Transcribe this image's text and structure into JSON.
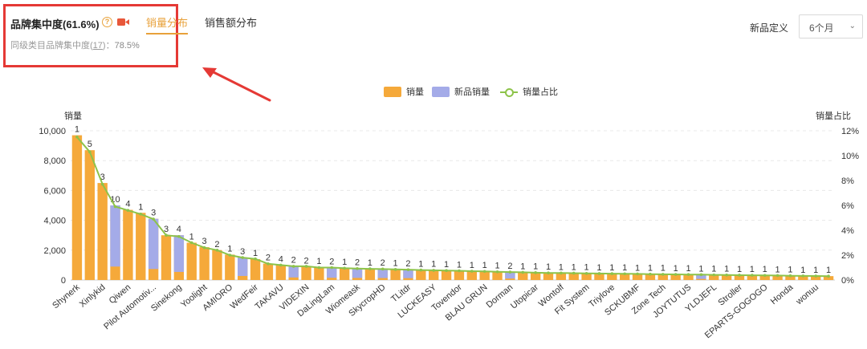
{
  "header": {
    "title": "品牌集中度(61.6%)",
    "help_glyph": "?",
    "subtitle_prefix": "同级类目品牌集中度(",
    "subtitle_count": "17",
    "subtitle_suffix": ")：",
    "subtitle_value": "78.5%",
    "tabs": [
      {
        "label": "销量分布",
        "active": true
      },
      {
        "label": "销售额分布",
        "active": false
      }
    ],
    "new_def_label": "新品定义",
    "new_def_value": "6个月",
    "accent_color": "#e8a13a",
    "highlight_color": "#e53935"
  },
  "chart_data": {
    "type": "bar",
    "left_axis_title": "销量",
    "right_axis_title": "销量占比",
    "legend": [
      {
        "name": "销量",
        "color": "#f5a93a"
      },
      {
        "name": "新品销量",
        "color": "#a4abe8"
      },
      {
        "name": "销量占比",
        "color": "#8dc34a"
      }
    ],
    "y_left": {
      "min": 0,
      "max": 10000,
      "ticks": [
        "0",
        "2,000",
        "4,000",
        "6,000",
        "8,000",
        "10,000"
      ]
    },
    "y_right": {
      "min": 0,
      "max": 12,
      "ticks": [
        "0%",
        "2%",
        "4%",
        "6%",
        "8%",
        "10%",
        "12%"
      ]
    },
    "shown_x_labels": [
      "Shynerk",
      "Xinlykid",
      "Qiwen",
      "Pilot Automotiv...",
      "Sinekong",
      "Yoolight",
      "AMIORO",
      "WedFeir",
      "TAKAVU",
      "VIDEXIN",
      "DaLingLam",
      "Wiomeask",
      "SkycropHD",
      "TLitdr",
      "LUCKEASY",
      "Tovendor",
      "BLAU GRUN",
      "Dorman",
      "Utopicar",
      "Wontolf",
      "Fit System",
      "Triylove",
      "SCKUBMF",
      "Zone Tech",
      "JOYTUTUS",
      "YLDJEFL",
      "Stroller",
      "EPARTS-GOGOGO",
      "Honda",
      "wonuu"
    ],
    "label_every": 2,
    "bar_counts": [
      "1",
      "5",
      "3",
      "10",
      "4",
      "1",
      "3",
      "3",
      "4",
      "1",
      "3",
      "2",
      "1",
      "3",
      "1",
      "2",
      "4",
      "2",
      "2",
      "1",
      "2",
      "1",
      "2",
      "1",
      "2",
      "1",
      "2",
      "1",
      "1",
      "1",
      "1",
      "1",
      "1",
      "1",
      "2",
      "1",
      "1",
      "1",
      "1",
      "1",
      "1",
      "1",
      "1",
      "1",
      "1",
      "1",
      "1",
      "1",
      "1",
      "1",
      "1",
      "1",
      "1",
      "1",
      "1",
      "1",
      "1",
      "1",
      "1",
      "1"
    ],
    "sales": [
      9700,
      8700,
      6500,
      5000,
      4700,
      4500,
      4100,
      3000,
      3000,
      2500,
      2200,
      2000,
      1700,
      1500,
      1400,
      1100,
      1000,
      950,
      900,
      850,
      820,
      800,
      780,
      760,
      740,
      720,
      700,
      680,
      660,
      640,
      620,
      600,
      580,
      560,
      540,
      520,
      500,
      480,
      470,
      460,
      450,
      440,
      430,
      420,
      410,
      400,
      390,
      380,
      370,
      360,
      350,
      340,
      330,
      320,
      310,
      300,
      290,
      280,
      270,
      260
    ],
    "new_sales": [
      0,
      0,
      0,
      5000,
      0,
      0,
      4100,
      0,
      3000,
      0,
      0,
      0,
      0,
      1500,
      0,
      0,
      0,
      950,
      0,
      0,
      820,
      0,
      780,
      0,
      740,
      0,
      700,
      0,
      0,
      0,
      0,
      0,
      0,
      0,
      540,
      0,
      0,
      0,
      0,
      0,
      0,
      0,
      0,
      0,
      0,
      0,
      0,
      0,
      0,
      350,
      0,
      0,
      0,
      0,
      0,
      0,
      0,
      0,
      0,
      0
    ],
    "share_pct": [
      11.5,
      10.3,
      7.7,
      5.9,
      5.6,
      5.3,
      4.9,
      3.6,
      3.5,
      3.0,
      2.6,
      2.4,
      2.0,
      1.8,
      1.7,
      1.3,
      1.2,
      1.1,
      1.1,
      1.0,
      1.0,
      0.95,
      0.92,
      0.9,
      0.88,
      0.85,
      0.83,
      0.8,
      0.78,
      0.76,
      0.74,
      0.71,
      0.69,
      0.66,
      0.64,
      0.62,
      0.59,
      0.57,
      0.56,
      0.55,
      0.53,
      0.52,
      0.51,
      0.5,
      0.49,
      0.47,
      0.46,
      0.45,
      0.44,
      0.43,
      0.41,
      0.4,
      0.39,
      0.38,
      0.37,
      0.36,
      0.34,
      0.33,
      0.32,
      0.31
    ],
    "grid": true
  }
}
